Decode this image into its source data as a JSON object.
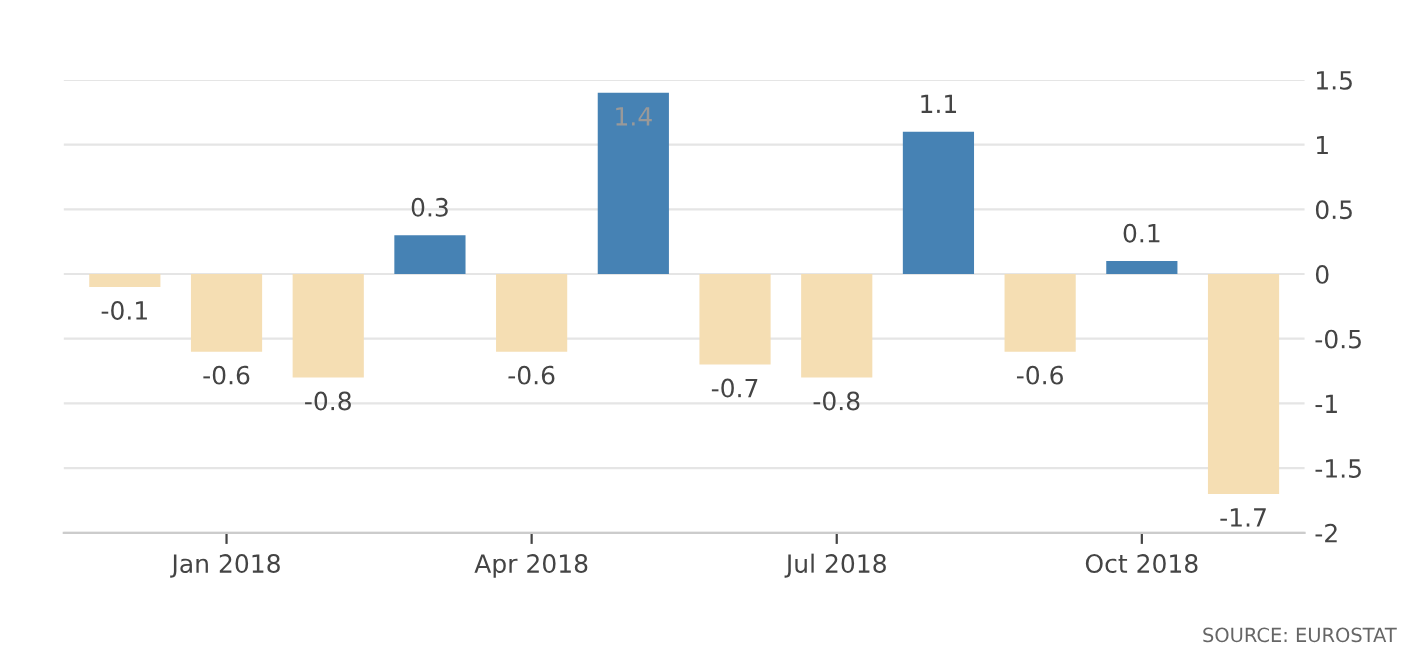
{
  "chart_data": {
    "type": "bar",
    "categories": [
      null,
      "Jan 2018",
      null,
      null,
      "Apr 2018",
      null,
      null,
      "Jul 2018",
      null,
      null,
      "Oct 2018",
      null
    ],
    "values": [
      -0.1,
      -0.6,
      -0.8,
      0.3,
      -0.6,
      1.4,
      -0.7,
      -0.8,
      1.1,
      -0.6,
      0.1,
      -1.7
    ],
    "colors": [
      "#f5deb3",
      "#f5deb3",
      "#f5deb3",
      "#4682b4",
      "#f5deb3",
      "#4682b4",
      "#f5deb3",
      "#f5deb3",
      "#4682b4",
      "#f5deb3",
      "#4682b4",
      "#f5deb3"
    ],
    "ylim": [
      -2,
      1.5
    ],
    "yticks": [
      {
        "value": -2,
        "label": "-2"
      },
      {
        "value": -1.5,
        "label": "-1.5"
      },
      {
        "value": -1,
        "label": "-1"
      },
      {
        "value": -0.5,
        "label": "-0.5"
      },
      0,
      0.5,
      1,
      1.5
    ],
    "grid": "y",
    "data_labels": true,
    "annotations": [
      "SOURCE: EUROSTAT"
    ]
  }
}
